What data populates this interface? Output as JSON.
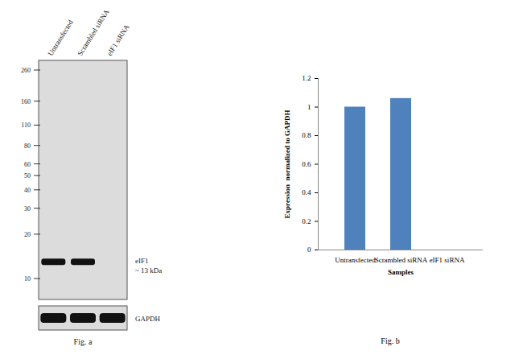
{
  "blot": {
    "lanes": [
      "Untransfected",
      "Scrambled siRNA",
      "eIF1 siRNA"
    ],
    "markers": [
      260,
      160,
      110,
      80,
      60,
      50,
      40,
      30,
      20,
      10
    ],
    "band_mw": 13,
    "band_label": "eIF1",
    "band_size_label": "~ 13 kDa",
    "band_intensity": [
      1,
      1,
      0
    ],
    "loading_control": "GAPDH",
    "loading_intensity": [
      1,
      1,
      1
    ],
    "caption": "Fig. a"
  },
  "chart_data": {
    "type": "bar",
    "categories": [
      "Untransfected",
      "Scrambled siRNA",
      "eIF1 siRNA"
    ],
    "values": [
      1,
      1.06,
      0
    ],
    "color": "#4f81bd",
    "xlabel": "Samples",
    "ylabel": "Expression  normalized to GAPDH",
    "ylim": [
      0,
      1.2
    ],
    "yticks": [
      0,
      0.2,
      0.4,
      0.6,
      0.8,
      1,
      1.2
    ],
    "grid": false,
    "caption": "Fig. b"
  }
}
